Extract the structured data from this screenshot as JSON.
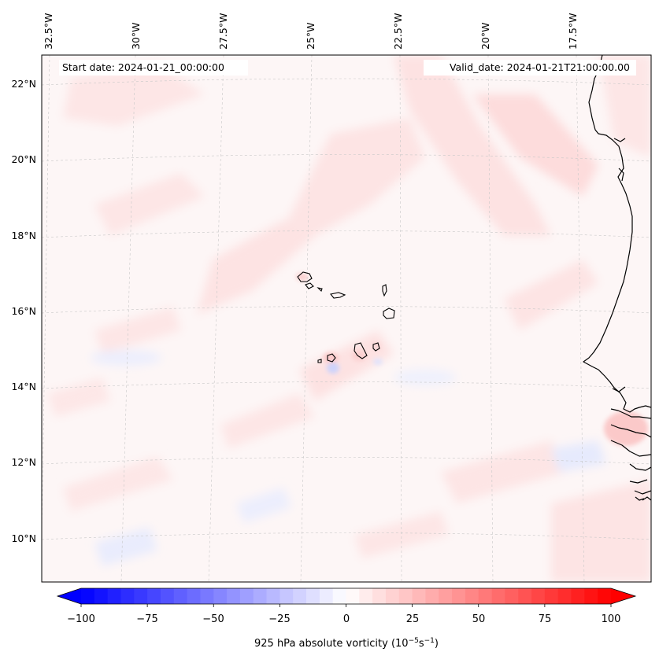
{
  "map": {
    "start_date_text": "Start date: 2024-01-21_00:00:00",
    "valid_date_text": "Valid_date: 2024-01-21T21:00:00.00",
    "lon_labels": [
      "32.5°W",
      "30°W",
      "27.5°W",
      "25°W",
      "22.5°W",
      "20°W",
      "17.5°W"
    ],
    "lat_labels": [
      "22°N",
      "20°N",
      "18°N",
      "16°N",
      "14°N",
      "12°N",
      "10°N"
    ],
    "background_color": "#fdf6f6",
    "field_colors": {
      "weak_positive": "#fde4e4",
      "moderate_positive": "#fbd0d0",
      "negative": "#e4e8fd",
      "coastline": "#000000"
    }
  },
  "colorbar": {
    "tick_labels": [
      "−100",
      "−75",
      "−50",
      "−25",
      "0",
      "25",
      "50",
      "75",
      "100"
    ],
    "min": -100,
    "max": 100,
    "step": 5,
    "extend": "both",
    "cmap_low": "#0000ff",
    "cmap_mid": "#ffffff",
    "cmap_high": "#ff0000",
    "label_main": "925 hPa absolute vorticity (10",
    "label_exp1": "−5",
    "label_mid": "s",
    "label_exp2": "−1",
    "label_end": ")"
  }
}
